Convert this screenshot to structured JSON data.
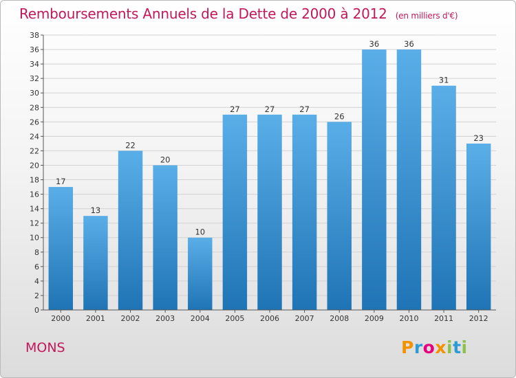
{
  "title": "Remboursements Annuels de la Dette de 2000 à 2012",
  "unit": "(en milliers d'€)",
  "town": "MONS",
  "logo": {
    "letters": [
      "P",
      "r",
      "o",
      "x",
      "i",
      "t",
      "i"
    ],
    "colors": [
      "#f39200",
      "#2e9ad6",
      "#e6007e",
      "#f39200",
      "#8bc34a",
      "#2e9ad6",
      "#8bc34a"
    ]
  },
  "colors": {
    "bar_top": "#5aaee8",
    "bar_bottom": "#1f74b5",
    "title": "#c2185b"
  },
  "chart_data": {
    "type": "bar",
    "categories": [
      "2000",
      "2001",
      "2002",
      "2003",
      "2004",
      "2005",
      "2006",
      "2007",
      "2008",
      "2009",
      "2010",
      "2011",
      "2012"
    ],
    "values": [
      17,
      13,
      22,
      20,
      10,
      27,
      27,
      27,
      26,
      36,
      36,
      31,
      23
    ],
    "ylim": [
      0,
      38
    ],
    "yticks": [
      0,
      2,
      4,
      6,
      8,
      10,
      12,
      14,
      16,
      18,
      20,
      22,
      24,
      26,
      28,
      30,
      32,
      34,
      36,
      38
    ],
    "grid": true
  }
}
